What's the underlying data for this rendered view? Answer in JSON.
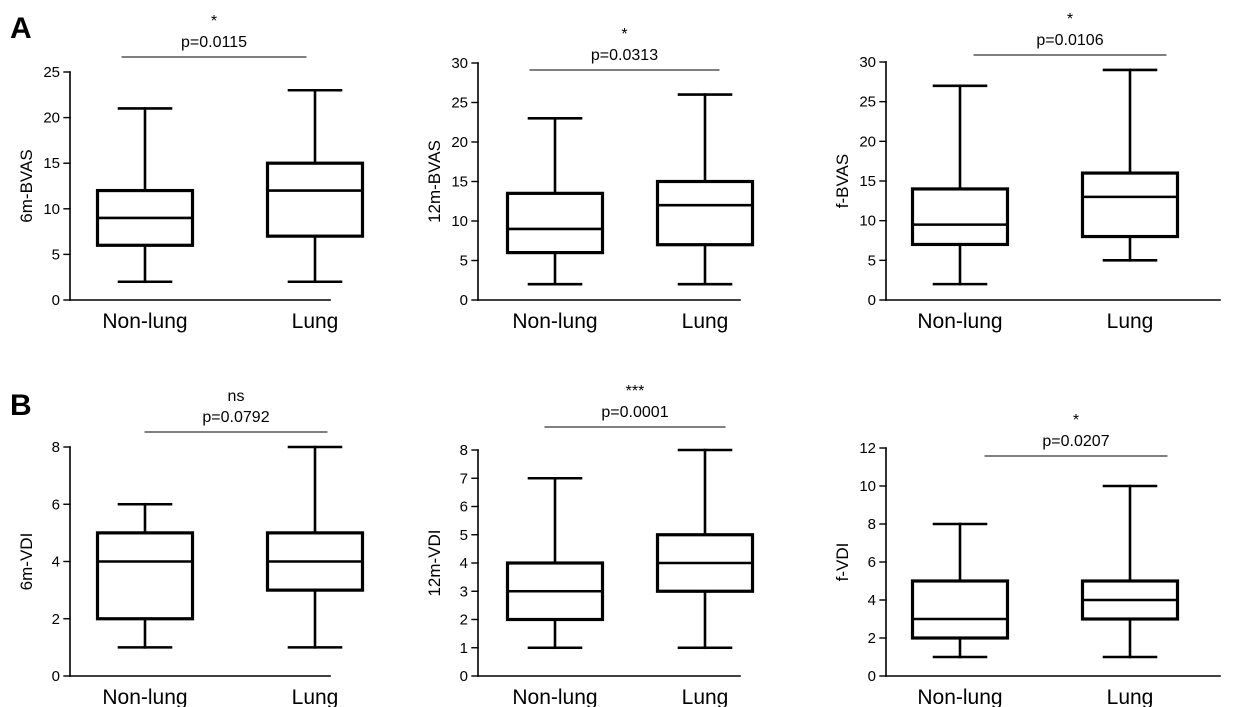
{
  "panels": [
    {
      "label": "A"
    },
    {
      "label": "B"
    }
  ],
  "chart_data": [
    {
      "type": "box",
      "panel": "A",
      "ylabel": "6m-BVAS",
      "ylim": [
        0,
        25
      ],
      "yticks": [
        0,
        5,
        10,
        15,
        20,
        25
      ],
      "categories": [
        "Non-lung",
        "Lung"
      ],
      "boxes": [
        {
          "min": 2,
          "q1": 6,
          "median": 9,
          "q3": 12,
          "max": 21
        },
        {
          "min": 2,
          "q1": 7,
          "median": 12,
          "q3": 15,
          "max": 23
        }
      ],
      "significance": "*",
      "p_value": "p=0.0115"
    },
    {
      "type": "box",
      "panel": "A",
      "ylabel": "12m-BVAS",
      "ylim": [
        0,
        30
      ],
      "yticks": [
        0,
        5,
        10,
        15,
        20,
        25,
        30
      ],
      "categories": [
        "Non-lung",
        "Lung"
      ],
      "boxes": [
        {
          "min": 2,
          "q1": 6,
          "median": 9,
          "q3": 13.5,
          "max": 23
        },
        {
          "min": 2,
          "q1": 7,
          "median": 12,
          "q3": 15,
          "max": 26
        }
      ],
      "significance": "*",
      "p_value": "p=0.0313"
    },
    {
      "type": "box",
      "panel": "A",
      "ylabel": "f-BVAS",
      "ylim": [
        0,
        30
      ],
      "yticks": [
        0,
        5,
        10,
        15,
        20,
        25,
        30
      ],
      "categories": [
        "Non-lung",
        "Lung"
      ],
      "boxes": [
        {
          "min": 2,
          "q1": 7,
          "median": 9.5,
          "q3": 14,
          "max": 27
        },
        {
          "min": 5,
          "q1": 8,
          "median": 13,
          "q3": 16,
          "max": 29
        }
      ],
      "significance": "*",
      "p_value": "p=0.0106"
    },
    {
      "type": "box",
      "panel": "B",
      "ylabel": "6m-VDI",
      "ylim": [
        0,
        8
      ],
      "yticks": [
        0,
        2,
        4,
        6,
        8
      ],
      "categories": [
        "Non-lung",
        "Lung"
      ],
      "boxes": [
        {
          "min": 1,
          "q1": 2,
          "median": 4,
          "q3": 5,
          "max": 6
        },
        {
          "min": 1,
          "q1": 3,
          "median": 4,
          "q3": 5,
          "max": 8
        }
      ],
      "significance": "ns",
      "p_value": "p=0.0792"
    },
    {
      "type": "box",
      "panel": "B",
      "ylabel": "12m-VDI",
      "ylim": [
        0,
        8
      ],
      "yticks": [
        0,
        1,
        2,
        3,
        4,
        5,
        6,
        7,
        8
      ],
      "categories": [
        "Non-lung",
        "Lung"
      ],
      "boxes": [
        {
          "min": 1,
          "q1": 2,
          "median": 3,
          "q3": 4,
          "max": 7
        },
        {
          "min": 1,
          "q1": 3,
          "median": 4,
          "q3": 5,
          "max": 8
        }
      ],
      "significance": "***",
      "p_value": "p=0.0001"
    },
    {
      "type": "box",
      "panel": "B",
      "ylabel": "f-VDI",
      "ylim": [
        0,
        12
      ],
      "yticks": [
        0,
        2,
        4,
        6,
        8,
        10,
        12
      ],
      "categories": [
        "Non-lung",
        "Lung"
      ],
      "boxes": [
        {
          "min": 1,
          "q1": 2,
          "median": 3,
          "q3": 5,
          "max": 8
        },
        {
          "min": 1,
          "q1": 3,
          "median": 4,
          "q3": 5,
          "max": 10
        }
      ],
      "significance": "*",
      "p_value": "p=0.0207"
    }
  ]
}
